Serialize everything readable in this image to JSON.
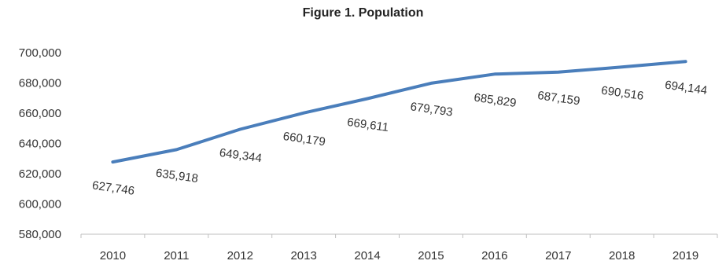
{
  "chart_data": {
    "type": "line",
    "title": "Figure 1. Population",
    "xlabel": "",
    "ylabel": "",
    "x": [
      "2010",
      "2011",
      "2012",
      "2013",
      "2014",
      "2015",
      "2016",
      "2017",
      "2018",
      "2019"
    ],
    "series": [
      {
        "values": [
          627746,
          635918,
          649344,
          660179,
          669611,
          679793,
          685829,
          687159,
          690516,
          694144
        ],
        "labels": [
          "627,746",
          "635,918",
          "649,344",
          "660,179",
          "669,611",
          "679,793",
          "685,829",
          "687,159",
          "690,516",
          "694,144"
        ],
        "color": "#4a7ebb"
      }
    ],
    "ylim": [
      580000,
      700000
    ],
    "yticks": [
      580000,
      600000,
      620000,
      640000,
      660000,
      680000,
      700000
    ],
    "ytick_labels": [
      "580,000",
      "600,000",
      "620,000",
      "640,000",
      "660,000",
      "680,000",
      "700,000"
    ],
    "grid": false
  }
}
